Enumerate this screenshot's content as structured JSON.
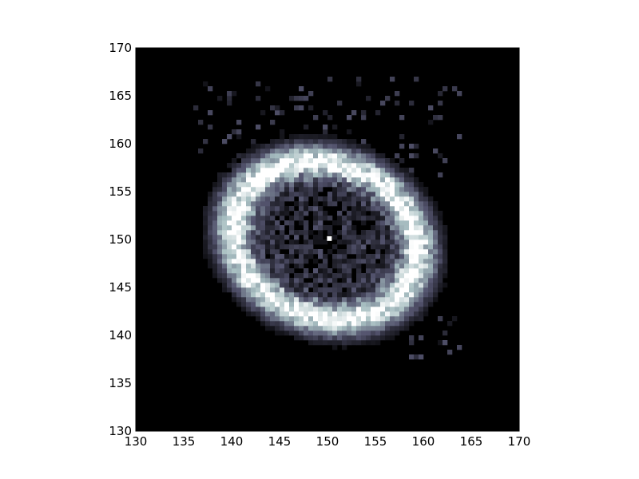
{
  "chart_data": {
    "type": "heatmap",
    "title": "",
    "xlabel": "",
    "ylabel": "",
    "xlim": [
      130,
      170
    ],
    "ylim": [
      130,
      170
    ],
    "grid": false,
    "colormap": "bone",
    "x_ticks": [
      130,
      135,
      140,
      145,
      150,
      155,
      160,
      165,
      170
    ],
    "y_ticks": [
      130,
      135,
      140,
      145,
      150,
      155,
      160,
      165,
      170
    ],
    "x_tick_labels": [
      "130",
      "135",
      "140",
      "145",
      "150",
      "155",
      "160",
      "165",
      "170"
    ],
    "y_tick_labels": [
      "130",
      "135",
      "140",
      "145",
      "150",
      "155",
      "160",
      "165",
      "170"
    ],
    "ring": {
      "center_x": 149.8,
      "center_y": 149.9,
      "semi_axis_major": 10.0,
      "semi_axis_minor": 8.2,
      "rotation_deg": -20,
      "ring_width": 1.3,
      "peak_intensity": 1.0
    },
    "central_spot": {
      "x": 150.2,
      "y": 150.1,
      "intensity": 1.0
    },
    "colors": {
      "background": "#000000",
      "low": "#2a2a3c",
      "mid": "#8fa7b0",
      "high": "#ffffff"
    }
  }
}
